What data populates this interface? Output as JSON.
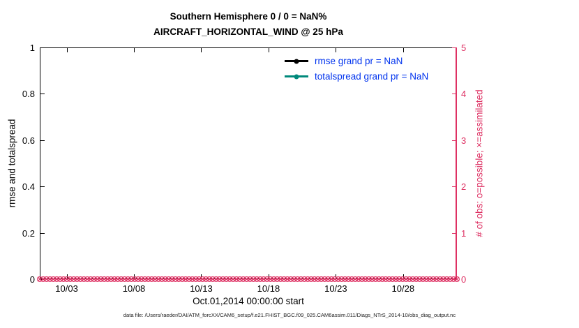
{
  "figure": {
    "title_line1": "Southern Hemisphere 0 / 0 = NaN%",
    "title_line2": "AIRCRAFT_HORIZONTAL_WIND @ 25 hPa",
    "xlabel": "Oct.01,2014 00:00:00 start",
    "ylabel_left": "rmse and totalspread",
    "ylabel_right": "# of obs: o=possible; ×=assimilated",
    "caption": "data file: /Users/raeder/DAI/ATM_forcXX/CAM6_setup/f.e21.FHIST_BGC.f09_025.CAM6assim.011/Diags_NTrS_2014-10/obs_diag_output.nc"
  },
  "colors": {
    "accent_pink": "#de3163",
    "legend_text_blue": "#0033ee",
    "teal": "#00897b",
    "black": "#000000"
  },
  "chart_data": {
    "type": "line",
    "title": "Southern Hemisphere 0 / 0 = NaN%",
    "subtitle": "AIRCRAFT_HORIZONTAL_WIND @ 25 hPa",
    "xlabel": "Oct.01,2014 00:00:00 start",
    "ylabel_left": "rmse and totalspread",
    "ylabel_right": "# of obs: o=possible; ×=assimilated",
    "ylim_left": [
      0,
      1
    ],
    "ylim_right": [
      0,
      5
    ],
    "grid": false,
    "legend_position": "upper-right-inside",
    "x_range_days": [
      1,
      32
    ],
    "x_ticks": [
      {
        "day": 3,
        "label": "10/03"
      },
      {
        "day": 8,
        "label": "10/08"
      },
      {
        "day": 13,
        "label": "10/13"
      },
      {
        "day": 18,
        "label": "10/18"
      },
      {
        "day": 23,
        "label": "10/23"
      },
      {
        "day": 28,
        "label": "10/28"
      }
    ],
    "y_ticks_left": [
      {
        "value": 0,
        "label": "0"
      },
      {
        "value": 0.2,
        "label": "0.2"
      },
      {
        "value": 0.4,
        "label": "0.4"
      },
      {
        "value": 0.6,
        "label": "0.6"
      },
      {
        "value": 0.8,
        "label": "0.8"
      },
      {
        "value": 1,
        "label": "1"
      }
    ],
    "y_ticks_right": [
      {
        "value": 0,
        "label": "0"
      },
      {
        "value": 1,
        "label": "1"
      },
      {
        "value": 2,
        "label": "2"
      },
      {
        "value": 3,
        "label": "3"
      },
      {
        "value": 4,
        "label": "4"
      },
      {
        "value": 5,
        "label": "5"
      }
    ],
    "legend": [
      {
        "label": "rmse grand pr = NaN",
        "color": "#000000",
        "value": "NaN"
      },
      {
        "label": "totalspread grand pr = NaN",
        "color": "#00897b",
        "value": "NaN"
      }
    ],
    "series": [
      {
        "name": "rmse",
        "grand_pr": "NaN",
        "values": []
      },
      {
        "name": "totalspread",
        "grand_pr": "NaN",
        "values": []
      }
    ],
    "obs_markers": {
      "marker_possible": "o",
      "marker_assimilated": "×",
      "count": 124,
      "value_all": 0,
      "axis": "right",
      "color": "#de3163"
    }
  }
}
